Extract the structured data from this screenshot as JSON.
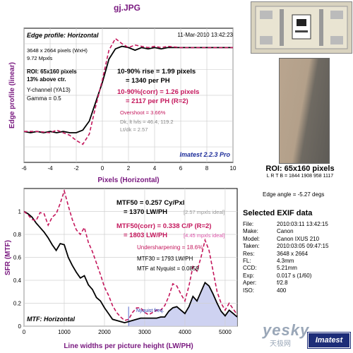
{
  "file_title": "gj.JPG",
  "roi": {
    "title": "ROI: 65x160 pixels",
    "coords": "L R T B = 1844 1908  958 1117"
  },
  "edge_angle": "Edge angle = -5.27 degs",
  "exif": {
    "title": "Selected EXIF data",
    "rows": [
      {
        "k": "File:",
        "v": "2010:03:11 13:42:15"
      },
      {
        "k": "Make:",
        "v": "Canon"
      },
      {
        "k": "Model:",
        "v": "Canon IXUS 210"
      },
      {
        "k": "Taken:",
        "v": "2010:03:05 09:47:15"
      },
      {
        "k": "Res:",
        "v": "3648 x 2664"
      },
      {
        "k": "FL:",
        "v": "4.3mm"
      },
      {
        "k": "CCD:",
        "v": "5.21mm"
      },
      {
        "k": "Exp:",
        "v": "0.017 s  (1/60)"
      },
      {
        "k": "Aper:",
        "v": "f/2.8"
      },
      {
        "k": "ISO:",
        "v": "400"
      }
    ]
  },
  "watermark": {
    "brand": "yesky",
    "sub": "天极网",
    "logo": "Imatest"
  },
  "chart_data": [
    {
      "type": "line",
      "title": "Edge profile: Horizontal",
      "xlabel": "Pixels (Horizontal)",
      "ylabel": "Edge profile (linear)",
      "xlim": [
        -6,
        10
      ],
      "ylim": [
        0.08,
        1.12
      ],
      "xticks": [
        "-6",
        "-4",
        "-2",
        "0",
        "2",
        "4",
        "6",
        "8",
        "10"
      ],
      "grid": true,
      "series": [
        {
          "color": "#000000",
          "points": [
            [
              -6,
              0.32
            ],
            [
              -5.5,
              0.31
            ],
            [
              -5,
              0.32
            ],
            [
              -4.5,
              0.31
            ],
            [
              -4,
              0.32
            ],
            [
              -3.5,
              0.31
            ],
            [
              -3,
              0.32
            ],
            [
              -2.5,
              0.31
            ],
            [
              -2,
              0.31
            ],
            [
              -1.5,
              0.33
            ],
            [
              -1,
              0.4
            ],
            [
              -0.5,
              0.55
            ],
            [
              0,
              0.7
            ],
            [
              0.5,
              0.88
            ],
            [
              1,
              0.96
            ],
            [
              1.5,
              0.98
            ],
            [
              2,
              0.97
            ],
            [
              2.5,
              0.95
            ],
            [
              3,
              0.97
            ],
            [
              3.5,
              0.96
            ],
            [
              4,
              0.97
            ],
            [
              4.5,
              0.96
            ],
            [
              5,
              0.97
            ],
            [
              5.5,
              0.97
            ],
            [
              6,
              0.97
            ],
            [
              7,
              0.97
            ],
            [
              8,
              0.97
            ],
            [
              9,
              0.97
            ],
            [
              10,
              0.97
            ]
          ]
        },
        {
          "color": "#c4175c",
          "dashed": true,
          "points": [
            [
              -6,
              0.32
            ],
            [
              -5,
              0.32
            ],
            [
              -4,
              0.31
            ],
            [
              -3.5,
              0.33
            ],
            [
              -3,
              0.31
            ],
            [
              -2.5,
              0.29
            ],
            [
              -2,
              0.25
            ],
            [
              -1.5,
              0.22
            ],
            [
              -1,
              0.3
            ],
            [
              -0.5,
              0.52
            ],
            [
              0,
              0.72
            ],
            [
              0.5,
              0.95
            ],
            [
              1,
              1.04
            ],
            [
              1.5,
              1.0
            ],
            [
              2,
              0.97
            ],
            [
              2.5,
              0.99
            ],
            [
              3,
              0.98
            ],
            [
              3.5,
              0.97
            ],
            [
              4,
              0.98
            ],
            [
              4.5,
              0.97
            ],
            [
              5,
              0.98
            ],
            [
              6,
              0.97
            ],
            [
              7,
              0.97
            ],
            [
              8,
              0.97
            ],
            [
              9,
              0.97
            ],
            [
              10,
              0.97
            ]
          ]
        }
      ],
      "annotations": {
        "date": "11-Mar-2010 13:42:23",
        "size": "3648 x 2664 pixels (WxH)",
        "mpxls": "9.72 Mpxls",
        "roi": "ROI: 65x160 pixels",
        "pct": "13% above ctr.",
        "ychannel": "Y-channel  (YA13)",
        "gamma": "Gamma = 0.5",
        "rise1": "10-90% rise = 1.99 pixels",
        "rise2": "= 1340 per PH",
        "corr1": "10-90%(corr) = 1.26 pixels",
        "corr2": "= 2117 per PH   (R=2)",
        "overshoot": "Overshoot = 3.66%",
        "dk": "Dk, lt lvls = 46.4, 119.2",
        "ltdk": "Lt/dk = 2.57",
        "version": "Imatest 2.2.3 Pro"
      }
    },
    {
      "type": "line",
      "title": "MTF: Horizontal",
      "xlabel": "Line widths per picture height (LW/PH)",
      "ylabel": "SFR (MTF)",
      "xlim": [
        0,
        5300
      ],
      "ylim": [
        0,
        1.2
      ],
      "xticks": [
        "0",
        "1000",
        "2000",
        "3000",
        "4000",
        "5000"
      ],
      "yticks": [
        "0",
        "0.2",
        "0.4",
        "0.6",
        "0.8",
        "1"
      ],
      "grid": true,
      "series": [
        {
          "color": "#000000",
          "points": [
            [
              0,
              1.0
            ],
            [
              100,
              0.98
            ],
            [
              200,
              0.95
            ],
            [
              300,
              0.9
            ],
            [
              400,
              0.86
            ],
            [
              500,
              0.82
            ],
            [
              600,
              0.77
            ],
            [
              700,
              0.71
            ],
            [
              800,
              0.66
            ],
            [
              900,
              0.72
            ],
            [
              1000,
              0.71
            ],
            [
              1100,
              0.6
            ],
            [
              1200,
              0.53
            ],
            [
              1300,
              0.47
            ],
            [
              1400,
              0.42
            ],
            [
              1500,
              0.44
            ],
            [
              1600,
              0.36
            ],
            [
              1700,
              0.32
            ],
            [
              1800,
              0.25
            ],
            [
              1900,
              0.22
            ],
            [
              2000,
              0.16
            ],
            [
              2100,
              0.11
            ],
            [
              2200,
              0.06
            ],
            [
              2300,
              0.05
            ],
            [
              2400,
              0.04
            ],
            [
              2500,
              0.03
            ],
            [
              2600,
              0.04
            ],
            [
              2700,
              0.05
            ],
            [
              2800,
              0.06
            ],
            [
              2900,
              0.07
            ],
            [
              3000,
              0.07
            ],
            [
              3100,
              0.07
            ],
            [
              3200,
              0.07
            ],
            [
              3300,
              0.07
            ],
            [
              3400,
              0.08
            ],
            [
              3500,
              0.08
            ],
            [
              3600,
              0.13
            ],
            [
              3700,
              0.16
            ],
            [
              3800,
              0.17
            ],
            [
              3900,
              0.14
            ],
            [
              4000,
              0.11
            ],
            [
              4100,
              0.17
            ],
            [
              4200,
              0.26
            ],
            [
              4300,
              0.22
            ],
            [
              4400,
              0.3
            ],
            [
              4500,
              0.38
            ],
            [
              4600,
              0.35
            ],
            [
              4700,
              0.28
            ],
            [
              4800,
              0.2
            ],
            [
              4900,
              0.13
            ],
            [
              5000,
              0.09
            ],
            [
              5100,
              0.14
            ],
            [
              5200,
              0.11
            ],
            [
              5300,
              0.08
            ]
          ]
        },
        {
          "color": "#c4175c",
          "dashed": true,
          "points": [
            [
              0,
              1.0
            ],
            [
              100,
              0.97
            ],
            [
              200,
              0.93
            ],
            [
              300,
              0.92
            ],
            [
              400,
              0.99
            ],
            [
              500,
              0.98
            ],
            [
              600,
              0.88
            ],
            [
              700,
              0.95
            ],
            [
              800,
              0.98
            ],
            [
              900,
              1.07
            ],
            [
              1000,
              1.18
            ],
            [
              1100,
              1.05
            ],
            [
              1200,
              0.93
            ],
            [
              1300,
              0.84
            ],
            [
              1400,
              0.8
            ],
            [
              1500,
              0.86
            ],
            [
              1600,
              0.73
            ],
            [
              1700,
              0.65
            ],
            [
              1800,
              0.55
            ],
            [
              1900,
              0.45
            ],
            [
              2000,
              0.34
            ],
            [
              2100,
              0.27
            ],
            [
              2200,
              0.18
            ],
            [
              2300,
              0.12
            ],
            [
              2400,
              0.08
            ],
            [
              2500,
              0.05
            ],
            [
              2600,
              0.06
            ],
            [
              2700,
              0.12
            ],
            [
              2800,
              0.16
            ],
            [
              2900,
              0.16
            ],
            [
              3000,
              0.12
            ],
            [
              3100,
              0.1
            ],
            [
              3200,
              0.12
            ],
            [
              3300,
              0.14
            ],
            [
              3400,
              0.14
            ],
            [
              3500,
              0.18
            ],
            [
              3600,
              0.26
            ],
            [
              3700,
              0.37
            ],
            [
              3800,
              0.35
            ],
            [
              3900,
              0.28
            ],
            [
              4000,
              0.22
            ],
            [
              4100,
              0.35
            ],
            [
              4200,
              0.52
            ],
            [
              4300,
              0.48
            ],
            [
              4400,
              0.6
            ],
            [
              4500,
              0.75
            ],
            [
              4600,
              0.66
            ],
            [
              4700,
              0.48
            ],
            [
              4800,
              0.3
            ],
            [
              4900,
              0.2
            ],
            [
              5000,
              0.14
            ],
            [
              5100,
              0.2
            ],
            [
              5200,
              0.15
            ],
            [
              5300,
              0.1
            ]
          ]
        }
      ],
      "nyquist_from": 2600,
      "annotations": {
        "mtf50": "MTF50 = 0.257 Cy/Pxl",
        "mtf50b": "= 1370 LW/PH",
        "mtf50_ideal": "[2.57 mpxls ideal]",
        "corr": "MTF50(corr) = 0.338 C/P  (R=2)",
        "corrb": "= 1803 LW/PH",
        "corr_ideal": "[4.45 mpxls ideal]",
        "under": "Undersharpening = 18.6%",
        "mtf30": "MTF30 = 1793 LW/PH",
        "nyq": "MTF at Nyquist = 0.0859",
        "nyq_label": "Nyquist freq."
      }
    }
  ]
}
